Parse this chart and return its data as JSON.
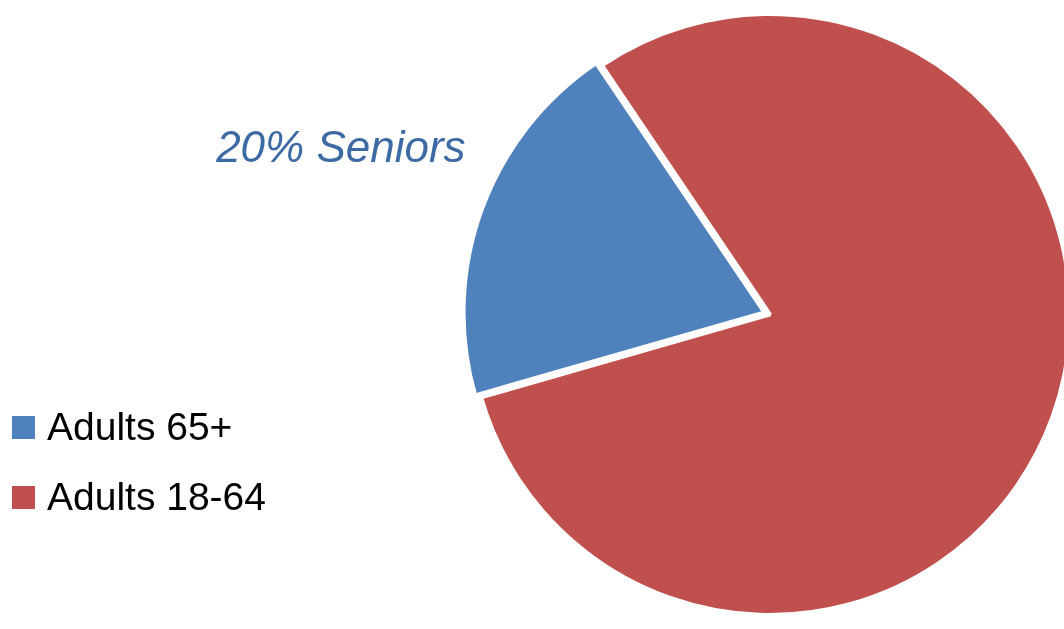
{
  "chart_data": {
    "type": "pie",
    "categories": [
      "Adults 65+",
      "Adults 18-64"
    ],
    "values": [
      20,
      80
    ],
    "colors": [
      "#4f81bd",
      "#c0504d"
    ],
    "value_labels": [
      "20% Seniors",
      null
    ],
    "legend": "left"
  }
}
